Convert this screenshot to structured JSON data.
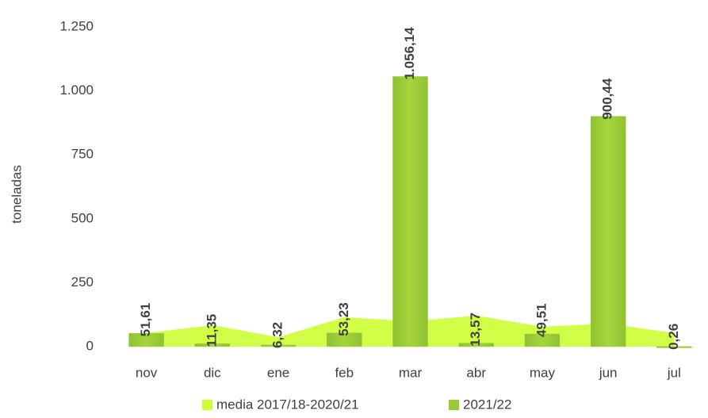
{
  "chart_data": {
    "type": "bar",
    "y_label": "toneladas",
    "categories": [
      "nov",
      "dic",
      "ene",
      "feb",
      "mar",
      "abr",
      "may",
      "jun",
      "jul"
    ],
    "series": [
      {
        "name": "media 2017/18-2020/21",
        "type": "area",
        "color": "#ccff33",
        "values": [
          53,
          84,
          37,
          115,
          99,
          121,
          78,
          90,
          53
        ]
      },
      {
        "name": "2021/22",
        "type": "bar",
        "color": "#99cc33",
        "values": [
          51.61,
          11.35,
          6.32,
          53.23,
          1056.14,
          13.57,
          49.51,
          900.44,
          0.26
        ],
        "value_labels": [
          "51,61",
          "11,35",
          "6,32",
          "53,23",
          "1.056,14",
          "13,57",
          "49,51",
          "900,44",
          "0,26"
        ]
      }
    ],
    "ylim": [
      0,
      1250
    ],
    "yticks": [
      0,
      250,
      500,
      750,
      {
        "value": 1000,
        "label": "1.000"
      },
      {
        "value": 1250,
        "label": "1.250"
      }
    ],
    "legend": "bottom"
  }
}
